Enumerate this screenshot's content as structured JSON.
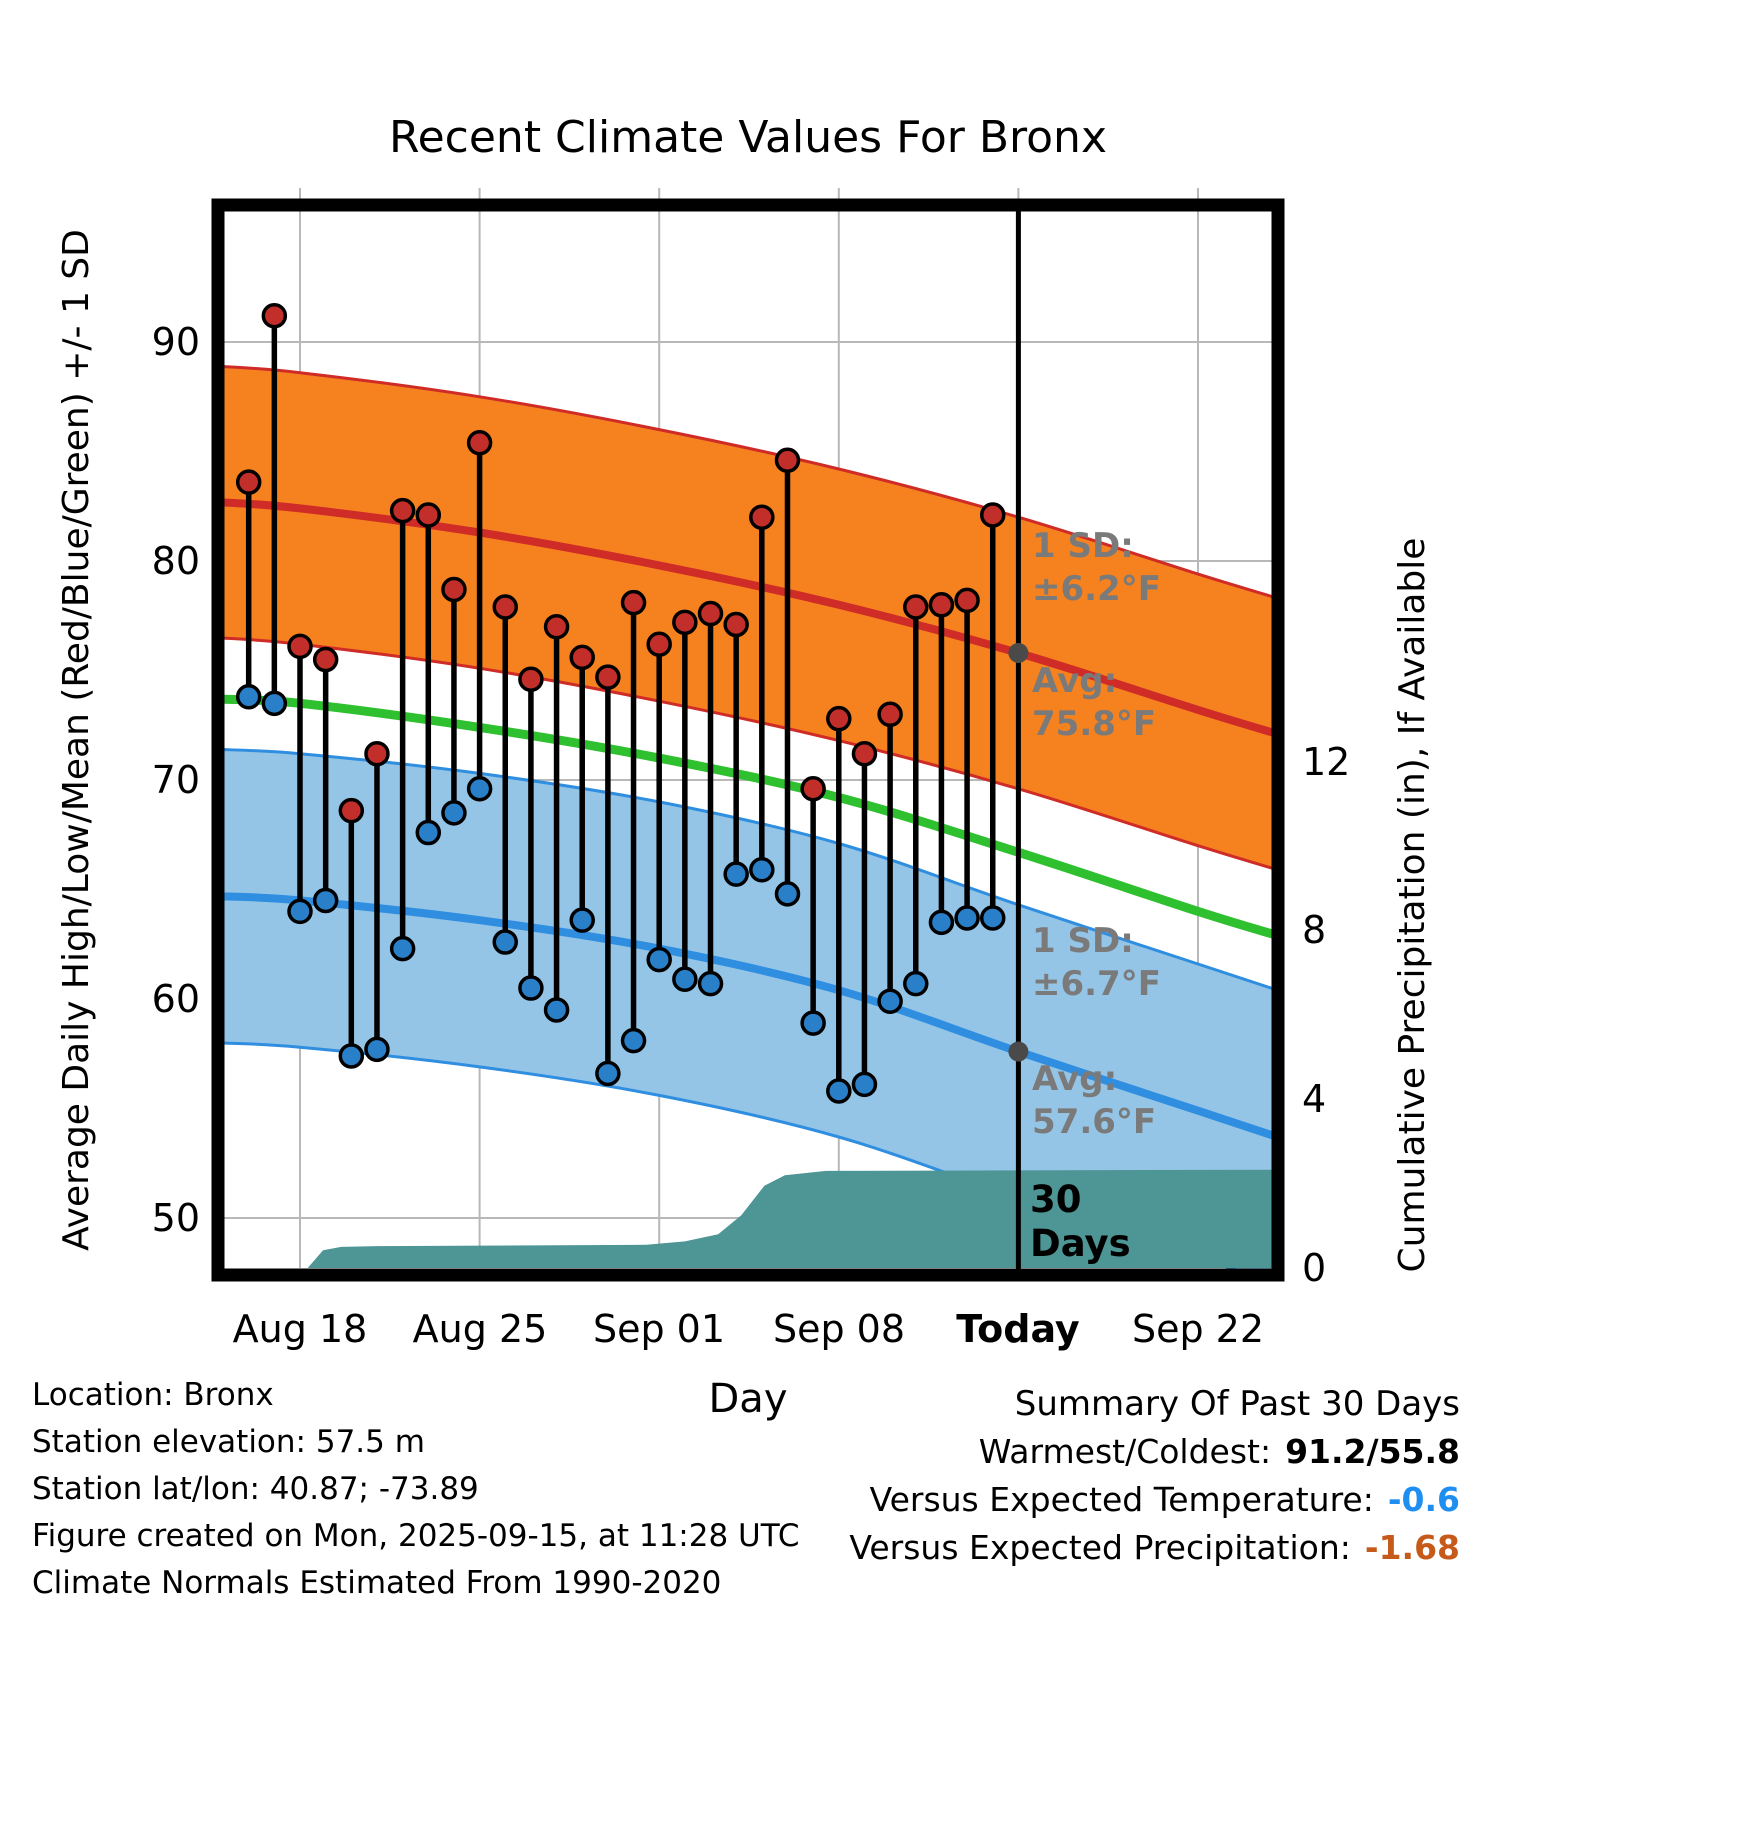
{
  "title": "Recent Climate Values For Bronx",
  "axes": {
    "left_label": "Average Daily High/Low/Mean (Red/Blue/Green) +/- 1 SD",
    "right_label": "Cumulative Precipitation (in), If Available",
    "x_label": "Day"
  },
  "chart_data": {
    "type": "line",
    "x_unit": "days since Aug 16",
    "daily": {
      "dates": [
        "Aug 16",
        "Aug 17",
        "Aug 18",
        "Aug 19",
        "Aug 20",
        "Aug 21",
        "Aug 22",
        "Aug 23",
        "Aug 24",
        "Aug 25",
        "Aug 26",
        "Aug 27",
        "Aug 28",
        "Aug 29",
        "Aug 30",
        "Aug 31",
        "Sep 01",
        "Sep 02",
        "Sep 03",
        "Sep 04",
        "Sep 05",
        "Sep 06",
        "Sep 07",
        "Sep 08",
        "Sep 09",
        "Sep 10",
        "Sep 11",
        "Sep 12",
        "Sep 13",
        "Sep 14"
      ],
      "high_f": [
        83.6,
        91.2,
        76.1,
        75.5,
        68.6,
        71.2,
        82.3,
        82.1,
        78.7,
        85.4,
        77.9,
        74.6,
        77.0,
        75.6,
        74.7,
        78.1,
        76.2,
        77.2,
        77.6,
        77.1,
        82.0,
        84.6,
        69.6,
        72.8,
        71.2,
        73.0,
        77.9,
        78.0,
        78.2,
        82.1
      ],
      "low_f": [
        73.8,
        73.5,
        64.0,
        64.5,
        57.4,
        57.7,
        62.3,
        67.6,
        68.5,
        69.6,
        62.6,
        60.5,
        59.5,
        63.6,
        56.6,
        58.1,
        61.8,
        60.9,
        60.7,
        65.7,
        65.9,
        64.8,
        58.9,
        55.8,
        56.1,
        59.9,
        60.7,
        63.5,
        63.7,
        63.7
      ]
    },
    "climatology": {
      "x_days": [
        -1.3,
        2,
        9,
        16,
        23,
        30,
        37,
        40.1
      ],
      "avg_high_f": [
        82.7,
        82.4,
        81.3,
        79.8,
        78.0,
        75.8,
        73.2,
        72.1
      ],
      "avg_low_f": [
        64.7,
        64.5,
        63.6,
        62.3,
        60.4,
        57.6,
        54.9,
        53.7
      ],
      "mean_f": [
        73.7,
        73.5,
        72.4,
        71.0,
        69.2,
        66.7,
        64.0,
        62.9
      ],
      "high_sd_f": 6.2,
      "low_sd_f": 6.7,
      "today_avg_high_f": 75.8,
      "today_avg_low_f": 57.6
    },
    "precip_cumulative_in": [
      [
        2.3,
        0
      ],
      [
        2.9,
        0.42
      ],
      [
        3.6,
        0.5
      ],
      [
        5,
        0.52
      ],
      [
        15.5,
        0.55
      ],
      [
        17,
        0.63
      ],
      [
        18.3,
        0.8
      ],
      [
        19.2,
        1.25
      ],
      [
        20.1,
        1.95
      ],
      [
        20.9,
        2.2
      ],
      [
        22.5,
        2.3
      ],
      [
        40.1,
        2.33
      ]
    ],
    "today_day": 30,
    "x_ticks": [
      {
        "day": 2,
        "label": "Aug 18"
      },
      {
        "day": 9,
        "label": "Aug 25"
      },
      {
        "day": 16,
        "label": "Sep 01"
      },
      {
        "day": 23,
        "label": "Sep 08"
      },
      {
        "day": 30,
        "label": "Today"
      },
      {
        "day": 37,
        "label": "Sep 22"
      }
    ],
    "y_ticks_temp": [
      90,
      80,
      70,
      60,
      50
    ],
    "y_ticks_precip": [
      12,
      8,
      4,
      0
    ],
    "ylim_temp": [
      47.4,
      96.3
    ],
    "ylim_precip": [
      0,
      25.2
    ],
    "colors": {
      "high_band": "#f5821f",
      "high_line": "#cf2b27",
      "low_band": "#95c5e6",
      "low_line": "#2f8ee0",
      "mean_line": "#2ec02e",
      "precip_fill": "#4e9596",
      "high_dot": "#c22f2a",
      "low_dot": "#2a80c8",
      "annotation_gray": "#7a7a7a",
      "marker_gray": "#4a4a4a",
      "grid": "#b8b8b8"
    }
  },
  "annotations": {
    "high_sd_line1": "1 SD:",
    "high_sd_line2": "±6.2°F",
    "high_avg_line1": "Avg:",
    "high_avg_line2": "75.8°F",
    "low_sd_line1": "1 SD:",
    "low_sd_line2": "±6.7°F",
    "low_avg_line1": "Avg:",
    "low_avg_line2": "57.6°F",
    "today_line1": "30",
    "today_line2": "Days"
  },
  "footer_left": [
    "Location: Bronx",
    "Station elevation: 57.5 m",
    "Station lat/lon: 40.87; -73.89",
    "Figure created on Mon, 2025-09-15, at 11:28 UTC",
    "Climate Normals Estimated From 1990-2020"
  ],
  "summary": {
    "title": "Summary Of Past 30 Days",
    "rows": [
      {
        "label": "Warmest/Coldest:",
        "value": "91.2/55.8",
        "color": "#000000"
      },
      {
        "label": "Versus Expected Temperature:",
        "value": "-0.6",
        "color": "#1f8ef1"
      },
      {
        "label": "Versus Expected Precipitation:",
        "value": "-1.68",
        "color": "#c55a1b"
      }
    ]
  }
}
